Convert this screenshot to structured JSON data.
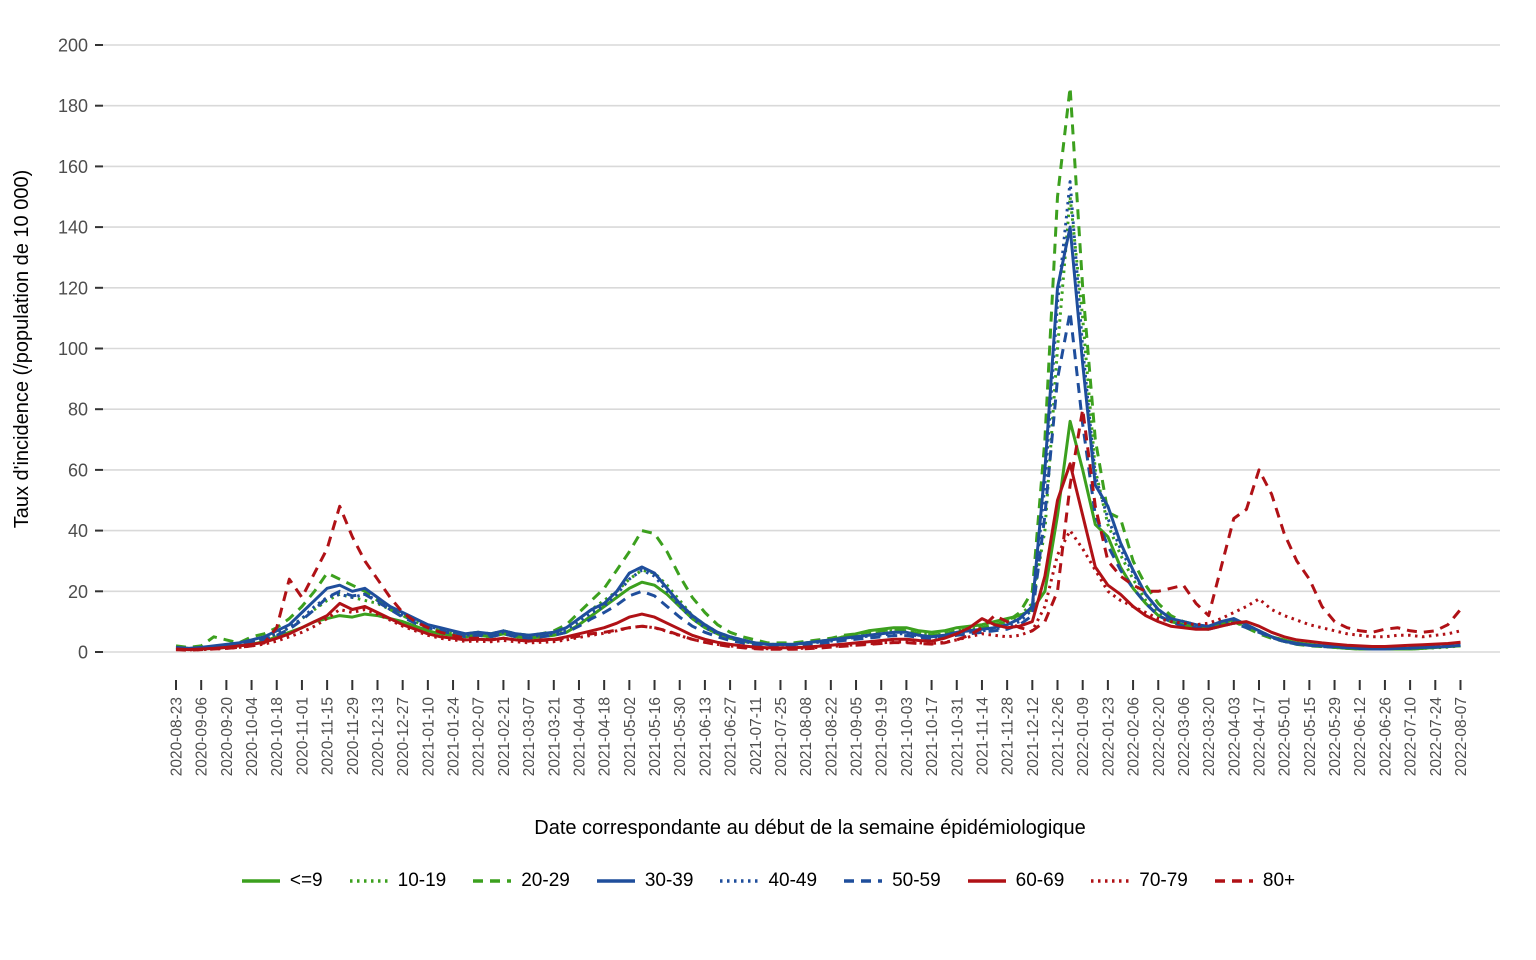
{
  "chart_data": {
    "type": "line",
    "title": "",
    "xlabel": "Date correspondante au début de la semaine épidémiologique",
    "ylabel": "Taux d'incidence (/population de 10 000)",
    "x_unit": "semaine (week start date)",
    "x_start": "2020-08-23",
    "x_end": "2022-08-07",
    "x_points": 103,
    "x_tick_interval_weeks": 2,
    "x_tick_labels": [
      "2020-08-23",
      "2020-09-06",
      "2020-09-20",
      "2020-10-04",
      "2020-10-18",
      "2020-11-01",
      "2020-11-15",
      "2020-11-29",
      "2020-12-13",
      "2020-12-27",
      "2021-01-10",
      "2021-01-24",
      "2021-02-07",
      "2021-02-21",
      "2021-03-07",
      "2021-03-21",
      "2021-04-04",
      "2021-04-18",
      "2021-05-02",
      "2021-05-16",
      "2021-05-30",
      "2021-06-13",
      "2021-06-27",
      "2021-07-11",
      "2021-07-25",
      "2021-08-08",
      "2021-08-22",
      "2021-09-05",
      "2021-09-19",
      "2021-10-03",
      "2021-10-17",
      "2021-10-31",
      "2021-11-14",
      "2021-11-28",
      "2021-12-12",
      "2021-12-26",
      "2022-01-09",
      "2022-01-23",
      "2022-02-06",
      "2022-02-20",
      "2022-03-06",
      "2022-03-20",
      "2022-04-03",
      "2022-04-17",
      "2022-05-01",
      "2022-05-15",
      "2022-05-29",
      "2022-06-12",
      "2022-06-26",
      "2022-07-10",
      "2022-07-24",
      "2022-08-07"
    ],
    "y_ticks": [
      0,
      20,
      40,
      60,
      80,
      100,
      120,
      140,
      160,
      180,
      200
    ],
    "ylim": [
      0,
      200
    ],
    "grid": "horizontal-only",
    "legend_position": "bottom",
    "axis_text_color": "#4D4D4D",
    "grid_color": "#D9D9D9",
    "tick_color": "#333333",
    "palette": {
      "green": "#3CA01E",
      "blue": "#1F4E9C",
      "red": "#B01116"
    },
    "series": [
      {
        "name": "<=9",
        "color": "#3CA01E",
        "linestyle": "solid",
        "values": [
          1.5,
          1.2,
          1,
          1.2,
          1.5,
          2,
          2.5,
          3.5,
          5,
          6.5,
          8,
          10,
          11,
          12,
          11.5,
          12.5,
          12,
          11,
          10,
          8.5,
          7,
          6,
          5.5,
          5,
          5.5,
          5,
          6,
          5,
          4.5,
          5,
          5.5,
          6.5,
          9,
          12,
          15,
          18,
          21,
          23,
          22,
          19,
          15,
          11,
          8,
          6,
          4.5,
          3.5,
          3,
          2.5,
          2.5,
          2.5,
          3,
          3.5,
          4,
          5,
          6,
          7,
          7.5,
          8,
          8,
          7,
          6.5,
          7,
          8,
          8.5,
          9,
          10,
          11,
          12,
          14,
          20,
          45,
          76,
          60,
          42,
          38,
          28,
          21,
          16,
          12,
          10,
          9,
          8,
          7.5,
          9,
          11,
          9,
          7,
          5,
          4,
          3,
          2.5,
          2,
          1.5,
          1.2,
          1,
          1,
          1,
          1,
          1,
          1.2,
          1.5,
          1.8,
          2
        ]
      },
      {
        "name": "10-19",
        "color": "#3CA01E",
        "linestyle": "dotted",
        "values": [
          1,
          1,
          1.2,
          1.5,
          2,
          2.2,
          3,
          4.5,
          6,
          8,
          11,
          14,
          17,
          19,
          18,
          17,
          16,
          14,
          12,
          10,
          8,
          7,
          6,
          5.5,
          6,
          5.5,
          6.5,
          5.5,
          5,
          5.5,
          6,
          8,
          11,
          14,
          17,
          20,
          24,
          27,
          26,
          22,
          17,
          12,
          9,
          6.5,
          5,
          4,
          3,
          2.5,
          2.5,
          2.5,
          3,
          3.5,
          4,
          5,
          5.5,
          6,
          6.5,
          7,
          7,
          6,
          5.5,
          6,
          7,
          7.5,
          8,
          9,
          10,
          12,
          16,
          40,
          100,
          150,
          110,
          60,
          42,
          32,
          24,
          17,
          13,
          10,
          9,
          8.5,
          8,
          9,
          10,
          8.5,
          6.5,
          5,
          3.5,
          2.8,
          2.2,
          1.8,
          1.5,
          1.2,
          1,
          1,
          1,
          1,
          1,
          1.2,
          1.4,
          1.6,
          2
        ]
      },
      {
        "name": "20-29",
        "color": "#3CA01E",
        "linestyle": "dashed",
        "values": [
          2,
          1.5,
          2,
          5,
          4,
          3,
          5,
          6,
          8,
          11,
          15,
          20,
          26,
          24,
          22,
          20,
          17,
          14,
          12,
          10,
          8,
          7,
          6.5,
          6,
          6.5,
          6,
          7,
          6,
          5.5,
          6,
          7,
          9,
          13,
          17,
          21,
          27,
          33,
          40,
          39,
          33,
          25,
          18,
          13,
          9,
          6.5,
          5,
          4,
          3,
          3,
          3,
          3.5,
          4,
          4.5,
          5.5,
          6,
          6.5,
          7,
          7.5,
          7,
          6,
          5.5,
          6,
          7,
          7.5,
          8,
          9,
          10,
          13,
          20,
          70,
          150,
          186,
          120,
          70,
          46,
          44,
          30,
          22,
          16,
          12,
          10,
          9,
          8,
          9,
          10,
          8,
          6,
          4.5,
          3.5,
          2.5,
          2,
          1.8,
          1.5,
          1.2,
          1,
          1,
          1,
          1,
          1,
          1.2,
          1.5,
          1.8,
          2.2
        ]
      },
      {
        "name": "30-39",
        "color": "#1F4E9C",
        "linestyle": "solid",
        "values": [
          1.5,
          1.2,
          1.5,
          2,
          2.5,
          3,
          4,
          5,
          7,
          9,
          13,
          17,
          21,
          22,
          20,
          21,
          18,
          15,
          13,
          11,
          9,
          8,
          7,
          6,
          6.5,
          6,
          7,
          6,
          5.5,
          6,
          6.5,
          8,
          11,
          14,
          16,
          20,
          26,
          28,
          26,
          21,
          16,
          12,
          9,
          6.5,
          5,
          4,
          3,
          2.5,
          2.5,
          2.5,
          3,
          3.5,
          4,
          4.5,
          5,
          5.5,
          6,
          6.5,
          6.5,
          5.5,
          5,
          5.5,
          6.5,
          7,
          7.5,
          8,
          9,
          11,
          15,
          60,
          120,
          140,
          95,
          55,
          48,
          36,
          27,
          19,
          14,
          11,
          10,
          9,
          8.5,
          10,
          11,
          9,
          7,
          5,
          3.5,
          2.8,
          2.2,
          2,
          1.8,
          1.5,
          1.2,
          1,
          1,
          1.2,
          1.3,
          1.5,
          1.6,
          1.8,
          2.2
        ]
      },
      {
        "name": "40-49",
        "color": "#1F4E9C",
        "linestyle": "dotted",
        "values": [
          1.2,
          1,
          1.2,
          1.8,
          2.2,
          2.8,
          3.5,
          4.5,
          6,
          8,
          11,
          15,
          18,
          19,
          18,
          19,
          17,
          14,
          12,
          10,
          8.5,
          7.5,
          6.5,
          5.5,
          6,
          5.5,
          6.5,
          5.5,
          5,
          5.5,
          6,
          7.5,
          10,
          13,
          15,
          19,
          24,
          27,
          25,
          20,
          15,
          11,
          8,
          6,
          4.5,
          3.5,
          2.8,
          2.4,
          2.4,
          2.4,
          2.8,
          3.2,
          3.6,
          4.2,
          4.8,
          5.2,
          5.6,
          6,
          6,
          5.2,
          4.8,
          5.2,
          6,
          6.5,
          7,
          7.5,
          8.5,
          10,
          14,
          55,
          115,
          155,
          100,
          58,
          44,
          34,
          26,
          19,
          14,
          11,
          9.5,
          9,
          8.5,
          9.5,
          10.5,
          9,
          7,
          5,
          3.5,
          2.8,
          2.2,
          2,
          1.8,
          1.5,
          1.2,
          1,
          1,
          1.2,
          1.3,
          1.5,
          1.7,
          2,
          2.4
        ]
      },
      {
        "name": "50-59",
        "color": "#1F4E9C",
        "linestyle": "dashed",
        "values": [
          1.2,
          1,
          1.2,
          1.6,
          2,
          2.5,
          3.2,
          4.2,
          5.5,
          7.5,
          10.5,
          14,
          18,
          20,
          18.5,
          19,
          16.5,
          14,
          11.5,
          9.5,
          8,
          7,
          6,
          5,
          5.5,
          5,
          6,
          5,
          4.5,
          5,
          5.5,
          6.5,
          8.5,
          11,
          13,
          15.5,
          18.5,
          20,
          18.5,
          15,
          11.5,
          8.5,
          6.5,
          5,
          3.8,
          3,
          2.4,
          2,
          2,
          2,
          2.4,
          2.8,
          3.2,
          3.8,
          4.2,
          4.6,
          5,
          5.4,
          5.4,
          4.8,
          4.4,
          4.8,
          5.5,
          6,
          6.5,
          7,
          7.5,
          9,
          12,
          45,
          90,
          112,
          75,
          45,
          35,
          27,
          21,
          16,
          12,
          10,
          8.5,
          8,
          7.5,
          8.5,
          9.5,
          8,
          6.5,
          4.8,
          3.4,
          2.6,
          2.2,
          1.8,
          1.6,
          1.4,
          1.2,
          1,
          1,
          1.2,
          1.3,
          1.5,
          1.7,
          2,
          2.3
        ]
      },
      {
        "name": "60-69",
        "color": "#B01116",
        "linestyle": "solid",
        "values": [
          1,
          0.8,
          1,
          1.2,
          1.5,
          2,
          2.5,
          3.2,
          4.5,
          6,
          8,
          10,
          12,
          16,
          14,
          15,
          13,
          11,
          9,
          7.5,
          6,
          5,
          4.5,
          4,
          4.2,
          4,
          4.5,
          4,
          3.6,
          4,
          4.2,
          5,
          6,
          7,
          8,
          9.5,
          11.5,
          12.5,
          11.5,
          9.5,
          7.5,
          5.5,
          4.2,
          3.2,
          2.5,
          2,
          1.6,
          1.4,
          1.4,
          1.4,
          1.6,
          1.9,
          2.2,
          2.6,
          3,
          3.4,
          3.8,
          4.2,
          4.2,
          3.8,
          3.6,
          4.5,
          6,
          8,
          11,
          9,
          8,
          8.5,
          10,
          25,
          50,
          62,
          45,
          28,
          22,
          19,
          15,
          12,
          10,
          8.5,
          8,
          7.5,
          7.5,
          8.5,
          9.5,
          10,
          8.5,
          6.5,
          5,
          4,
          3.5,
          3,
          2.6,
          2.2,
          2,
          1.8,
          1.8,
          2,
          2.2,
          2.4,
          2.6,
          2.8,
          3.2
        ]
      },
      {
        "name": "70-79",
        "color": "#B01116",
        "linestyle": "dotted",
        "values": [
          0.8,
          0.7,
          0.8,
          1,
          1.2,
          1.5,
          2,
          2.6,
          3.6,
          5,
          6.5,
          8.5,
          11,
          14,
          13,
          14,
          12.5,
          10.5,
          8.5,
          7,
          5.5,
          4.5,
          4,
          3.5,
          3.6,
          3.4,
          3.8,
          3.4,
          3,
          3.2,
          3.4,
          4,
          4.8,
          5.5,
          6.2,
          7,
          8,
          8.5,
          8,
          6.8,
          5.4,
          4.2,
          3.2,
          2.5,
          2,
          1.6,
          1.3,
          1.1,
          1.1,
          1.1,
          1.3,
          1.5,
          1.8,
          2.1,
          2.4,
          2.7,
          3,
          3.3,
          3.3,
          3,
          2.8,
          3.2,
          4,
          5,
          6,
          5.5,
          5,
          5.5,
          7,
          15,
          32,
          40,
          34,
          27,
          20,
          17,
          15,
          13,
          11,
          10,
          9.5,
          9,
          9.5,
          11,
          13,
          15,
          17.5,
          14,
          12,
          10.5,
          9,
          8,
          7,
          6,
          5.5,
          5,
          5,
          5.5,
          5.5,
          5,
          5.5,
          6,
          7
        ]
      },
      {
        "name": "80+",
        "color": "#B01116",
        "linestyle": "dashed",
        "values": [
          0.8,
          0.6,
          0.8,
          1,
          1.2,
          1.5,
          2,
          3,
          8,
          24,
          18,
          26,
          34,
          48,
          38,
          30,
          24,
          18,
          13,
          10,
          8,
          6.5,
          5.5,
          4.5,
          4.5,
          4,
          4.5,
          4,
          3.6,
          3.8,
          4,
          4.5,
          5.2,
          6,
          6.5,
          7.2,
          8,
          8.5,
          8,
          7,
          5.5,
          4.2,
          3.2,
          2.4,
          1.8,
          1.4,
          1.1,
          0.9,
          0.9,
          0.9,
          1.1,
          1.3,
          1.6,
          1.9,
          2.2,
          2.5,
          2.8,
          3.1,
          3.1,
          2.8,
          2.6,
          3,
          4,
          5.5,
          8,
          12,
          10,
          8,
          7,
          10,
          20,
          55,
          80,
          48,
          30,
          25,
          22,
          20,
          20,
          21,
          22,
          16,
          12,
          28,
          44,
          47,
          60,
          52,
          39,
          30,
          24,
          15,
          10,
          8,
          7,
          6.5,
          7.5,
          8,
          7,
          6.5,
          7,
          9,
          14
        ]
      }
    ]
  }
}
